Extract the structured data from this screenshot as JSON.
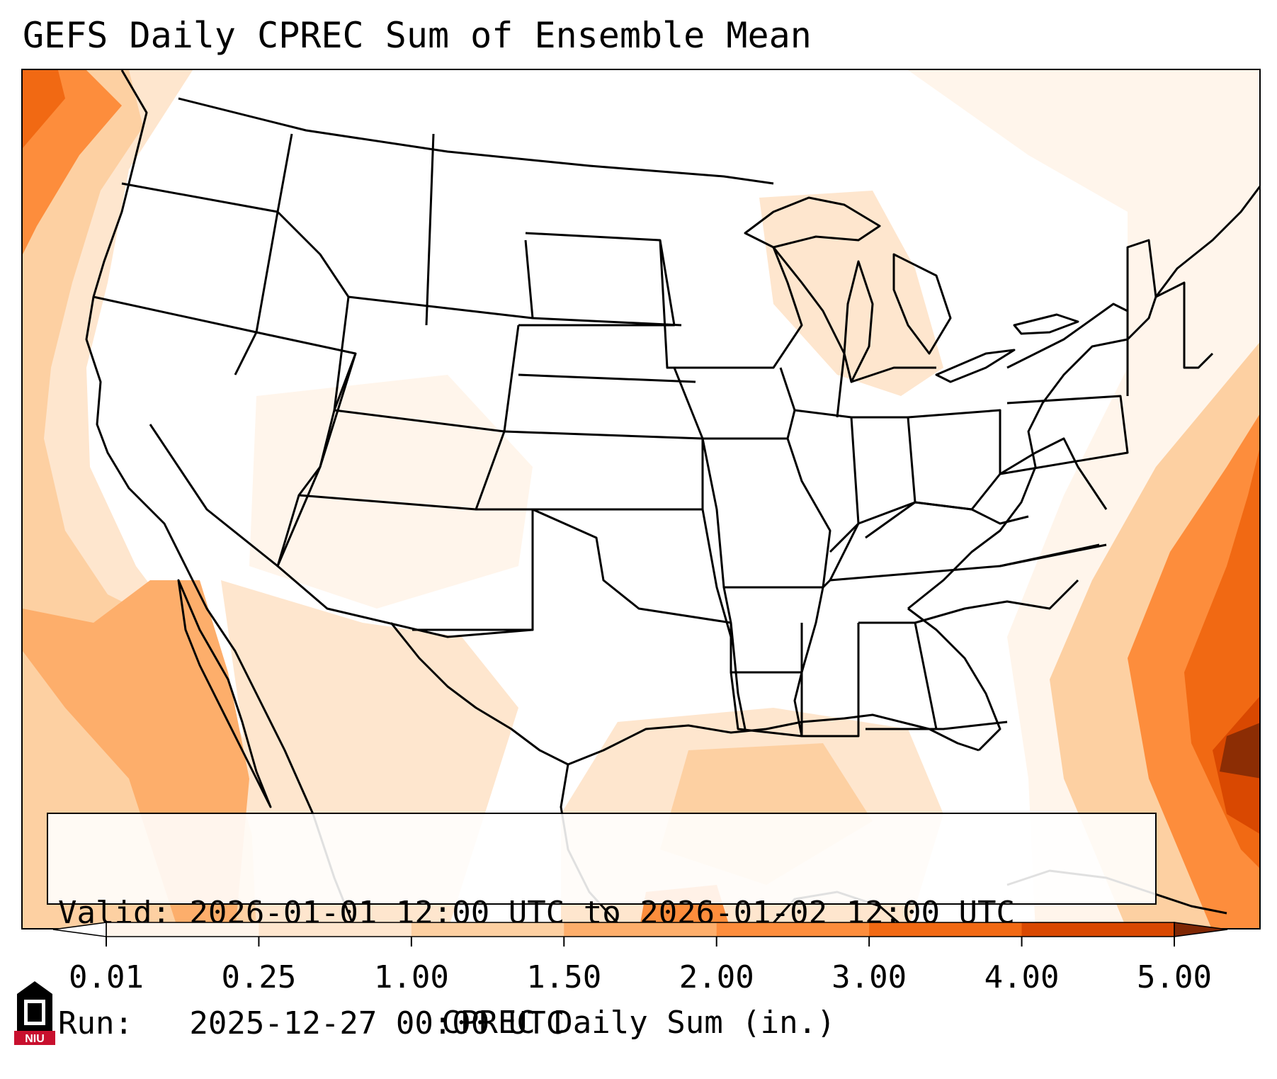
{
  "title": "GEFS Daily CPREC Sum of Ensemble Mean",
  "info": {
    "valid_line": "Valid: 2026-01-01 12:00 UTC to 2026-01-02 12:00 UTC",
    "run_line": "Run:   2025-12-27 00:00 UTC"
  },
  "colorbar": {
    "label": "CPREC Daily Sum (in.)",
    "ticks": [
      "0.01",
      "0.25",
      "1.00",
      "1.50",
      "2.00",
      "3.00",
      "4.00",
      "5.00"
    ],
    "colors": [
      "#fff5eb",
      "#fee6ce",
      "#fdd0a2",
      "#fdae6b",
      "#fd8d3c",
      "#f16913",
      "#d94801",
      "#8c2d04"
    ],
    "under_color": "#ffffff",
    "over_color": "#7f2704",
    "extend": "both"
  },
  "logo": {
    "text": "NIU",
    "colors": {
      "red": "#c8102e",
      "black": "#000000"
    }
  },
  "map_colors": {
    "state_lines": "#000000",
    "ocean_background": "#ffffff"
  }
}
